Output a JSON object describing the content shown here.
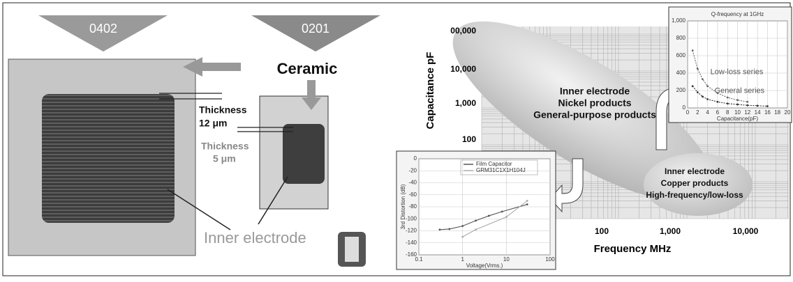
{
  "left_panel": {
    "size_large": "0402",
    "size_small": "0201",
    "material": "Ceramic",
    "thickness_large": [
      "Thickness",
      "12 μm"
    ],
    "thickness_small": [
      "Thickness",
      "5 μm"
    ],
    "electrode": "Inner electrode"
  },
  "main_chart": {
    "y_label": "Capacitance pF",
    "x_label": "Frequency MHz",
    "y_tick_labels": [
      "00,000",
      "10,000",
      "1,000",
      "100"
    ],
    "x_tick_labels": [
      "100",
      "1,000",
      "10,000"
    ],
    "nickel_region": [
      "Inner electrode",
      "Nickel products",
      "General-purpose products"
    ],
    "copper_region": [
      "Inner electrode",
      "Copper products",
      "High-frequency/low-loss"
    ]
  },
  "q_inset": {
    "type": "line",
    "title": "Q-frequency at 1GHz",
    "x_label": "Capacitance(pF)",
    "xlim": [
      0,
      20
    ],
    "xticks": [
      0,
      2,
      4,
      6,
      8,
      10,
      12,
      14,
      16,
      18,
      20
    ],
    "ylim": [
      0,
      1000
    ],
    "yticks": [
      0,
      200,
      400,
      600,
      800,
      {
        "value": 1000,
        "label": "1,000"
      }
    ],
    "grid": true,
    "series": [
      {
        "name": "Low-loss series",
        "color": "#666666",
        "x": [
          1,
          2,
          3,
          4,
          6,
          8,
          10,
          12
        ],
        "values": [
          660,
          450,
          330,
          250,
          170,
          120,
          90,
          70
        ]
      },
      {
        "name": "General series",
        "color": "#333333",
        "x": [
          1,
          2,
          3,
          4,
          6,
          8,
          10,
          12,
          14,
          16
        ],
        "values": [
          250,
          180,
          130,
          100,
          70,
          50,
          40,
          30,
          25,
          20
        ]
      }
    ]
  },
  "distortion_inset": {
    "type": "line",
    "x_label": "Voltage(Vrms.)",
    "y_label": "3rd Distortion (dB)",
    "log_x": true,
    "xlim": [
      0.1,
      100
    ],
    "xticks": [
      0.1,
      1,
      10,
      100
    ],
    "ylim": [
      -160,
      0
    ],
    "yticks": [
      0,
      -20,
      -40,
      -60,
      -80,
      -100,
      -120,
      -140,
      -160
    ],
    "grid": true,
    "legend": "upper center",
    "series": [
      {
        "name": "Film Capacitor",
        "color": "#555555",
        "x": [
          0.3,
          0.5,
          1,
          2,
          4,
          8,
          30
        ],
        "values": [
          -118,
          -117,
          -112,
          -103,
          -95,
          -88,
          -76
        ]
      },
      {
        "name": "GRM31C1X1H104J",
        "color": "#aaaaaa",
        "x": [
          1,
          2,
          10,
          30
        ],
        "values": [
          -130,
          -118,
          -97,
          -70
        ]
      }
    ]
  }
}
